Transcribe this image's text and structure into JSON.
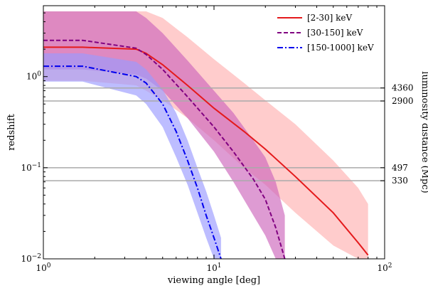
{
  "chart_data": {
    "type": "line",
    "xlabel": "viewing angle [deg]",
    "ylabel": "redshift",
    "y2label": "luminosity distance (Mpc)",
    "xscale": "log",
    "yscale": "log",
    "xlim": [
      1,
      100
    ],
    "ylim": [
      0.01,
      6
    ],
    "x_ticks": [
      {
        "value": 1,
        "base": "10",
        "exp": "0"
      },
      {
        "value": 10,
        "base": "10",
        "exp": "1"
      },
      {
        "value": 100,
        "base": "10",
        "exp": "2"
      }
    ],
    "y_ticks": [
      {
        "value": 0.01,
        "base": "10",
        "exp": "−2"
      },
      {
        "value": 0.1,
        "base": "10",
        "exp": "−1"
      },
      {
        "value": 1,
        "base": "10",
        "exp": "0"
      }
    ],
    "distance_lines": [
      {
        "label": "4360",
        "redshift": 0.75
      },
      {
        "label": "2900",
        "redshift": 0.54
      },
      {
        "label": "497",
        "redshift": 0.1
      },
      {
        "label": "330",
        "redshift": 0.072
      }
    ],
    "legend": {
      "position": "top-right"
    },
    "series": [
      {
        "name": "[2-30] keV",
        "color": "#e41a1c",
        "band_color": "#ffb0b0",
        "dash": "solid",
        "x": [
          1,
          1.7,
          3.5,
          4,
          5,
          7,
          10,
          15,
          20,
          30,
          50,
          70,
          80
        ],
        "y": [
          2.1,
          2.1,
          2.0,
          1.8,
          1.35,
          0.8,
          0.45,
          0.25,
          0.16,
          0.08,
          0.032,
          0.015,
          0.011
        ],
        "band_upper": [
          5.2,
          5.2,
          5.2,
          5.2,
          4.4,
          2.7,
          1.55,
          0.85,
          0.55,
          0.3,
          0.12,
          0.06,
          0.04
        ],
        "band_lower": [
          0.9,
          0.9,
          0.8,
          0.7,
          0.55,
          0.35,
          0.2,
          0.1,
          0.065,
          0.032,
          0.014,
          0.01,
          0.01
        ]
      },
      {
        "name": "[30-150] keV",
        "color": "#800080",
        "band_color": "#cc66bb",
        "dash": "dashed",
        "x": [
          1,
          1.7,
          3.5,
          4,
          5,
          7,
          10,
          13,
          17,
          20,
          23,
          26
        ],
        "y": [
          2.5,
          2.5,
          2.05,
          1.75,
          1.2,
          0.6,
          0.28,
          0.15,
          0.075,
          0.045,
          0.022,
          0.01
        ],
        "band_upper": [
          5.2,
          5.2,
          5.2,
          4.4,
          3.0,
          1.5,
          0.7,
          0.4,
          0.2,
          0.13,
          0.07,
          0.03
        ],
        "band_lower": [
          1.2,
          1.2,
          1.05,
          0.95,
          0.7,
          0.35,
          0.15,
          0.07,
          0.03,
          0.018,
          0.01,
          0.01
        ]
      },
      {
        "name": "[150-1000] keV",
        "color": "#0000ee",
        "band_color": "#9999ff",
        "dash": "dashdot",
        "x": [
          1,
          1.7,
          3.5,
          4,
          5,
          6,
          7,
          8,
          9,
          10,
          11
        ],
        "y": [
          1.3,
          1.3,
          1.0,
          0.85,
          0.5,
          0.25,
          0.12,
          0.06,
          0.03,
          0.017,
          0.01
        ],
        "band_upper": [
          1.8,
          1.8,
          1.45,
          1.2,
          0.72,
          0.4,
          0.2,
          0.1,
          0.055,
          0.03,
          0.017
        ],
        "band_lower": [
          0.88,
          0.88,
          0.62,
          0.5,
          0.28,
          0.13,
          0.065,
          0.032,
          0.017,
          0.01,
          0.01
        ]
      }
    ]
  }
}
